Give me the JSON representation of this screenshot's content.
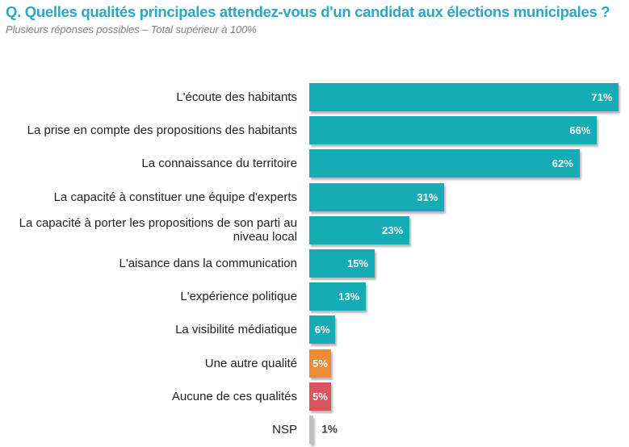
{
  "header": {
    "title": "Q. Quelles qualités principales attendez-vous d'un candidat aux élections municipales ?",
    "subtitle": "Plusieurs réponses possibles – Total supérieur à 100%"
  },
  "colors": {
    "title": "#2AA7C1",
    "subtitle": "#7F7F7F",
    "teal": "#16ACB5",
    "orange": "#EE8B34",
    "red": "#D9545B",
    "gray": "#C0BFBF",
    "category_text": "#1F1F1F",
    "value_text_inside": "#FFFFFF",
    "value_text_outside": "#3F3F3F"
  },
  "chart_data": {
    "type": "bar",
    "orientation": "horizontal",
    "unit": "%",
    "axis": "hidden",
    "xlim": [
      0,
      100
    ],
    "title": "Q. Quelles qualités principales attendez-vous d'un candidat aux élections municipales ?",
    "subtitle": "Plusieurs réponses possibles – Total supérieur à 100%",
    "categories": [
      "L'écoute des habitants",
      "La prise en compte des propositions des habitants",
      "La connaissance du territoire",
      "La capacité à constituer une équipe d'experts",
      "La capacité à porter les propositions de son parti au niveau local",
      "L'aisance dans la communication",
      "L'expérience politique",
      "La visibilité médiatique",
      "Une autre qualité",
      "Aucune de ces qualités",
      "NSP"
    ],
    "values": [
      71,
      66,
      62,
      31,
      23,
      15,
      13,
      6,
      5,
      5,
      1
    ],
    "value_labels": [
      "71%",
      "66%",
      "62%",
      "31%",
      "23%",
      "15%",
      "13%",
      "6%",
      "5%",
      "5%",
      "1%"
    ],
    "bar_colors": [
      "teal",
      "teal",
      "teal",
      "teal",
      "teal",
      "teal",
      "teal",
      "teal",
      "orange",
      "red",
      "gray"
    ]
  }
}
